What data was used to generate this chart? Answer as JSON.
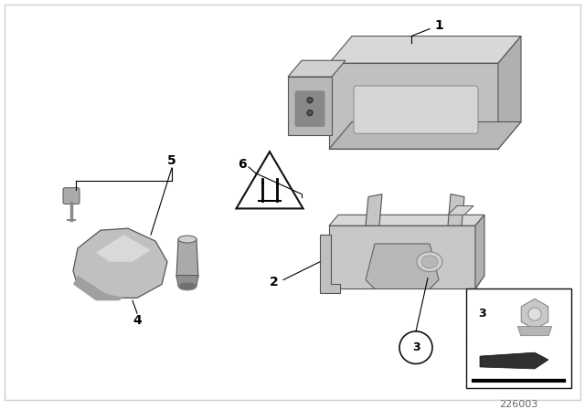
{
  "background_color": "#ffffff",
  "fig_width": 6.4,
  "fig_height": 4.48,
  "dpi": 100,
  "diagram_number": "226003",
  "gray_light": "#c8c8c8",
  "gray_mid": "#aaaaaa",
  "gray_dark": "#888888",
  "gray_darker": "#666666",
  "gray_edge": "#555555",
  "white": "#ffffff",
  "black": "#111111"
}
